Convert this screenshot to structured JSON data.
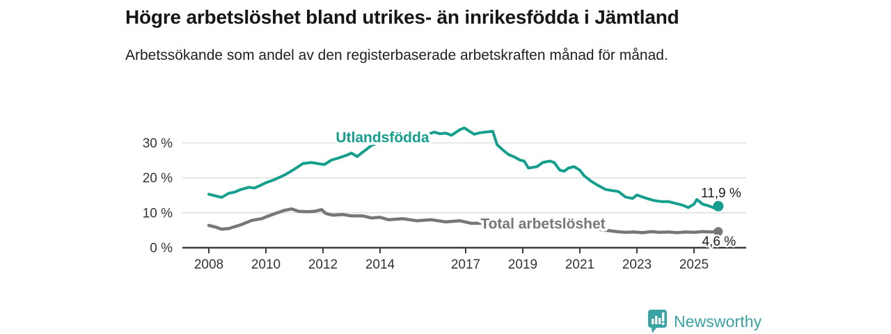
{
  "header": {
    "title": "Högre arbetslöshet bland utrikes- än inrikesfödda i Jämtland",
    "subtitle": "Arbetssökande som andel av den registerbaserade arbetskraften månad för månad."
  },
  "chart_data": {
    "type": "line",
    "unit": "%",
    "xlim": [
      2007.07,
      2026.83
    ],
    "ylim": [
      0,
      37
    ],
    "grid": "horizontal",
    "x_ticks": [
      2008,
      2010,
      2012,
      2014,
      2017,
      2019,
      2021,
      2023,
      2025
    ],
    "x_tick_labels": [
      "2008",
      "2010",
      "2012",
      "2014",
      "2017",
      "2019",
      "2021",
      "2023",
      "2025"
    ],
    "y_ticks": [
      0,
      10,
      20,
      30
    ],
    "y_tick_labels": [
      "0 %",
      "10 %",
      "20 %",
      "30 %"
    ],
    "colors": {
      "grid": "#d9d9d9",
      "axis": "#3b3b3b",
      "tick_text": "#333333"
    },
    "series": [
      {
        "name": "Total arbetslöshet",
        "color": "#77767b",
        "end_label": "4,6 %",
        "end_value": 4.6,
        "label": {
          "text": "Total arbetslöshet",
          "x": 2017.52,
          "y": 6.9,
          "anchor": "start"
        },
        "points": [
          [
            2008.0,
            6.4
          ],
          [
            2008.2,
            6.0
          ],
          [
            2008.45,
            5.3
          ],
          [
            2008.7,
            5.5
          ],
          [
            2009.1,
            6.5
          ],
          [
            2009.5,
            7.8
          ],
          [
            2009.85,
            8.3
          ],
          [
            2010.0,
            8.8
          ],
          [
            2010.3,
            9.7
          ],
          [
            2010.65,
            10.7
          ],
          [
            2010.9,
            11.1
          ],
          [
            2011.15,
            10.4
          ],
          [
            2011.45,
            10.3
          ],
          [
            2011.7,
            10.4
          ],
          [
            2011.95,
            10.9
          ],
          [
            2012.1,
            9.8
          ],
          [
            2012.35,
            9.3
          ],
          [
            2012.7,
            9.5
          ],
          [
            2013.0,
            9.1
          ],
          [
            2013.4,
            9.1
          ],
          [
            2013.7,
            8.5
          ],
          [
            2014.0,
            8.7
          ],
          [
            2014.3,
            8.0
          ],
          [
            2014.8,
            8.3
          ],
          [
            2015.3,
            7.7
          ],
          [
            2015.8,
            8.0
          ],
          [
            2016.3,
            7.4
          ],
          [
            2016.8,
            7.7
          ],
          [
            2017.2,
            7.0
          ],
          [
            2017.5,
            7.0
          ],
          [
            2017.8,
            6.8
          ],
          [
            2018.3,
            6.4
          ],
          [
            2019.0,
            6.0
          ],
          [
            2019.8,
            5.7
          ],
          [
            2020.3,
            6.4
          ],
          [
            2021.0,
            5.9
          ],
          [
            2021.6,
            5.3
          ],
          [
            2022.0,
            4.9
          ],
          [
            2022.3,
            4.6
          ],
          [
            2022.6,
            4.4
          ],
          [
            2022.9,
            4.5
          ],
          [
            2023.2,
            4.3
          ],
          [
            2023.5,
            4.6
          ],
          [
            2023.8,
            4.4
          ],
          [
            2024.1,
            4.5
          ],
          [
            2024.4,
            4.3
          ],
          [
            2024.7,
            4.5
          ],
          [
            2025.0,
            4.4
          ],
          [
            2025.3,
            4.6
          ],
          [
            2025.6,
            4.5
          ],
          [
            2025.85,
            4.6
          ]
        ]
      },
      {
        "name": "Utlandsfödda",
        "color": "#149e8e",
        "end_label": "11,9 %",
        "end_value": 11.9,
        "label": {
          "text": "Utlandsfödda",
          "x": 2015.72,
          "y": 31.6,
          "anchor": "end"
        },
        "points": [
          [
            2008.0,
            15.3
          ],
          [
            2008.2,
            14.9
          ],
          [
            2008.45,
            14.4
          ],
          [
            2008.7,
            15.6
          ],
          [
            2008.9,
            15.9
          ],
          [
            2009.1,
            16.6
          ],
          [
            2009.4,
            17.3
          ],
          [
            2009.6,
            17.1
          ],
          [
            2009.8,
            17.8
          ],
          [
            2010.0,
            18.6
          ],
          [
            2010.3,
            19.5
          ],
          [
            2010.65,
            20.8
          ],
          [
            2011.0,
            22.5
          ],
          [
            2011.3,
            24.1
          ],
          [
            2011.6,
            24.4
          ],
          [
            2011.8,
            24.1
          ],
          [
            2012.05,
            23.8
          ],
          [
            2012.3,
            25.1
          ],
          [
            2012.55,
            25.7
          ],
          [
            2012.8,
            26.4
          ],
          [
            2013.0,
            27.1
          ],
          [
            2013.2,
            26.1
          ],
          [
            2013.35,
            27.1
          ],
          [
            2013.5,
            28.0
          ],
          [
            2013.7,
            29.3
          ],
          [
            2014.0,
            30.1
          ],
          [
            2014.3,
            30.8
          ],
          [
            2014.6,
            31.3
          ],
          [
            2014.9,
            31.8
          ],
          [
            2015.2,
            32.1
          ],
          [
            2015.5,
            32.4
          ],
          [
            2015.7,
            32.5
          ],
          [
            2015.9,
            33.1
          ],
          [
            2016.1,
            32.6
          ],
          [
            2016.3,
            32.8
          ],
          [
            2016.5,
            32.2
          ],
          [
            2016.8,
            33.8
          ],
          [
            2016.95,
            34.3
          ],
          [
            2017.1,
            33.5
          ],
          [
            2017.3,
            32.5
          ],
          [
            2017.5,
            32.9
          ],
          [
            2017.7,
            33.1
          ],
          [
            2017.95,
            33.3
          ],
          [
            2018.1,
            29.5
          ],
          [
            2018.3,
            28.0
          ],
          [
            2018.5,
            26.7
          ],
          [
            2018.7,
            26.0
          ],
          [
            2018.9,
            25.1
          ],
          [
            2019.05,
            24.8
          ],
          [
            2019.2,
            22.8
          ],
          [
            2019.5,
            23.2
          ],
          [
            2019.7,
            24.4
          ],
          [
            2019.95,
            24.8
          ],
          [
            2020.1,
            24.4
          ],
          [
            2020.3,
            22.2
          ],
          [
            2020.45,
            21.9
          ],
          [
            2020.6,
            22.8
          ],
          [
            2020.8,
            23.2
          ],
          [
            2021.0,
            22.2
          ],
          [
            2021.15,
            20.6
          ],
          [
            2021.4,
            19.0
          ],
          [
            2021.6,
            18.0
          ],
          [
            2021.9,
            16.7
          ],
          [
            2022.1,
            16.4
          ],
          [
            2022.35,
            16.1
          ],
          [
            2022.6,
            14.5
          ],
          [
            2022.85,
            14.1
          ],
          [
            2023.0,
            15.1
          ],
          [
            2023.1,
            14.8
          ],
          [
            2023.35,
            14.1
          ],
          [
            2023.6,
            13.5
          ],
          [
            2023.85,
            13.2
          ],
          [
            2024.1,
            13.2
          ],
          [
            2024.3,
            12.8
          ],
          [
            2024.6,
            12.2
          ],
          [
            2024.8,
            11.5
          ],
          [
            2025.0,
            12.5
          ],
          [
            2025.1,
            13.8
          ],
          [
            2025.3,
            12.5
          ],
          [
            2025.55,
            11.9
          ],
          [
            2025.7,
            11.4
          ],
          [
            2025.85,
            11.9
          ]
        ]
      }
    ]
  },
  "branding": {
    "logo_text": "Newsworthy",
    "logo_color": "#3aa3a3",
    "logo_icon": "bar-chart-speech-bubble-icon"
  }
}
